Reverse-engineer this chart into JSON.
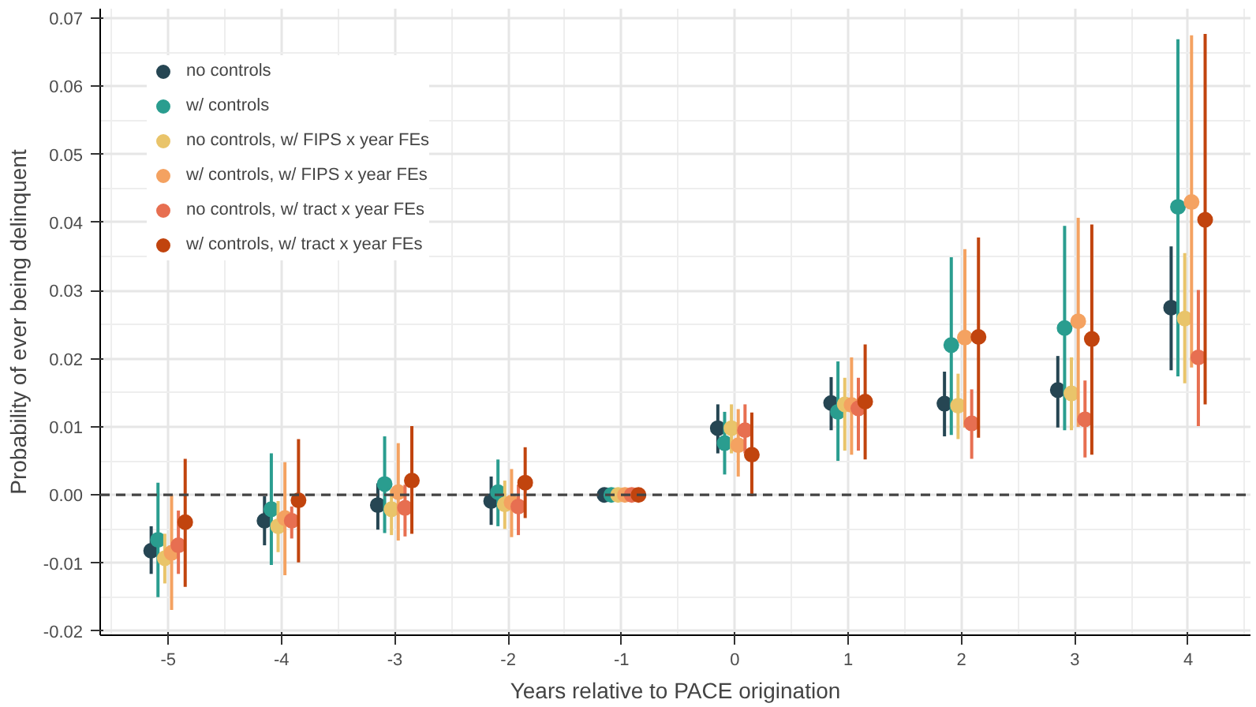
{
  "chart_data": {
    "type": "scatter",
    "xlabel": "Years relative to PACE origination",
    "ylabel": "Probability of ever being delinquent",
    "categories": [
      "-5",
      "-4",
      "-3",
      "-2",
      "-1",
      "0",
      "1",
      "2",
      "3",
      "4"
    ],
    "ylim": [
      -0.0206,
      0.0714
    ],
    "yticks": [
      {
        "value": -0.02,
        "label": "-0.02"
      },
      {
        "value": -0.01,
        "label": "-0.01"
      },
      {
        "value": 0,
        "label": "0.00"
      },
      {
        "value": 0.01,
        "label": "0.01"
      },
      {
        "value": 0.02,
        "label": "0.02"
      },
      {
        "value": 0.03,
        "label": "0.03"
      },
      {
        "value": 0.04,
        "label": "0.04"
      },
      {
        "value": 0.05,
        "label": "0.05"
      },
      {
        "value": 0.06,
        "label": "0.06"
      },
      {
        "value": 0.07,
        "label": "0.07"
      }
    ],
    "grid": true,
    "legend": "top left",
    "marker": "circle",
    "ref_lines": [
      {
        "axis": "y",
        "value": 0,
        "color": "#444444",
        "line_style": "dashed"
      }
    ],
    "series": [
      {
        "name": "no controls",
        "color": "#264653",
        "values": [
          -0.0082,
          -0.0038,
          -0.0015,
          -0.0009,
          0,
          0.0098,
          0.0135,
          0.0134,
          0.0154,
          0.0275
        ],
        "errors": [
          [
            -0.0116,
            -0.0046
          ],
          [
            -0.0074,
            -0.0002
          ],
          [
            -0.0051,
            0.0017
          ],
          [
            -0.0044,
            0.0027
          ],
          null,
          [
            0.0061,
            0.0133
          ],
          [
            0.0095,
            0.0173
          ],
          [
            0.0086,
            0.0181
          ],
          [
            0.0099,
            0.0204
          ],
          [
            0.0183,
            0.0365
          ]
        ]
      },
      {
        "name": "w/ controls",
        "color": "#2a9d8f",
        "values": [
          -0.0066,
          -0.0021,
          0.0016,
          0.0004,
          0,
          0.0076,
          0.0122,
          0.022,
          0.0245,
          0.0423
        ],
        "errors": [
          [
            -0.015,
            0.0018
          ],
          [
            -0.0103,
            0.0061
          ],
          [
            -0.0056,
            0.0086
          ],
          [
            -0.0046,
            0.0052
          ],
          null,
          [
            0.003,
            0.0122
          ],
          [
            0.005,
            0.0196
          ],
          [
            0.0088,
            0.0349
          ],
          [
            0.0095,
            0.0395
          ],
          [
            0.0174,
            0.0669
          ]
        ]
      },
      {
        "name": "no controls, w/ FIPS x year FEs",
        "color": "#e9c46a",
        "values": [
          -0.0093,
          -0.0046,
          -0.0021,
          -0.0014,
          0,
          0.0098,
          0.0133,
          0.0131,
          0.0149,
          0.0259
        ],
        "errors": [
          [
            -0.013,
            -0.0057
          ],
          [
            -0.0084,
            -0.0009
          ],
          [
            -0.0059,
            0.0008
          ],
          [
            -0.005,
            0.0021
          ],
          null,
          [
            0.0061,
            0.0133
          ],
          [
            0.0065,
            0.0172
          ],
          [
            0.0082,
            0.0178
          ],
          [
            0.0095,
            0.0202
          ],
          [
            0.0164,
            0.0355
          ]
        ]
      },
      {
        "name": "w/ controls, w/ FIPS x year FEs",
        "color": "#f4a261",
        "values": [
          -0.0085,
          -0.0034,
          0.0004,
          -0.0011,
          0,
          0.0073,
          0.0132,
          0.0231,
          0.0255,
          0.043
        ],
        "errors": [
          [
            -0.0169,
            0.0
          ],
          [
            -0.0118,
            0.0048
          ],
          [
            -0.0067,
            0.0076
          ],
          [
            -0.0062,
            0.0038
          ],
          null,
          [
            0.0027,
            0.0126
          ],
          [
            0.0059,
            0.0202
          ],
          [
            0.0099,
            0.0361
          ],
          [
            0.01,
            0.0407
          ],
          [
            0.0187,
            0.0675
          ]
        ]
      },
      {
        "name": "no controls, w/ tract x year FEs",
        "color": "#e76f51",
        "values": [
          -0.0074,
          -0.0038,
          -0.0019,
          -0.0017,
          0,
          0.0095,
          0.0127,
          0.0105,
          0.0111,
          0.0202
        ],
        "errors": [
          [
            -0.0116,
            -0.0023
          ],
          [
            -0.0064,
            -0.0017
          ],
          [
            -0.0061,
            0.0015
          ],
          [
            -0.0059,
            0.0015
          ],
          null,
          [
            0.0061,
            0.0133
          ],
          [
            0.0065,
            0.0172
          ],
          [
            0.0053,
            0.0155
          ],
          [
            0.0055,
            0.0168
          ],
          [
            0.0101,
            0.0301
          ]
        ]
      },
      {
        "name": "w/ controls, w/ tract x year FEs",
        "color": "#c1440e",
        "values": [
          -0.004,
          -0.0008,
          0.0021,
          0.0018,
          0,
          0.0059,
          0.0137,
          0.0232,
          0.0229,
          0.0404
        ],
        "errors": [
          [
            -0.0135,
            0.0053
          ],
          [
            -0.0099,
            0.0082
          ],
          [
            -0.0057,
            0.0101
          ],
          [
            -0.0034,
            0.007
          ],
          null,
          [
            -0.0002,
            0.0121
          ],
          [
            0.0052,
            0.0221
          ],
          [
            0.0084,
            0.0378
          ],
          [
            0.0059,
            0.0397
          ],
          [
            0.0133,
            0.0677
          ]
        ]
      }
    ]
  }
}
